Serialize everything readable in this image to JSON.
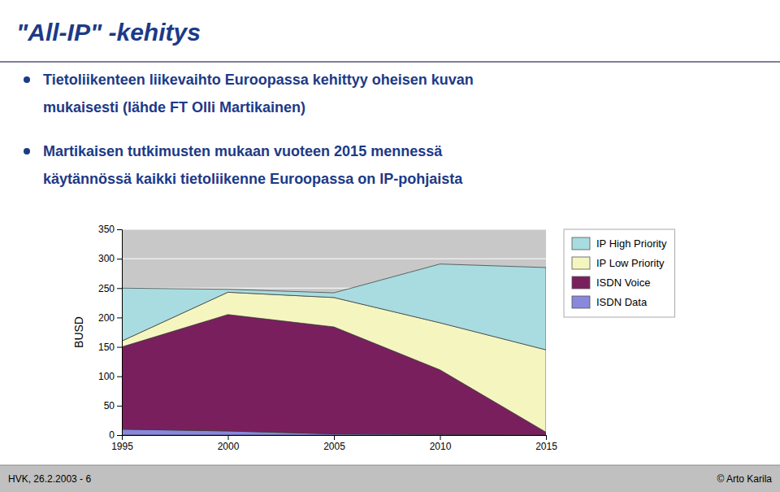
{
  "chart_data": {
    "type": "area",
    "title": "\"All-IP\" -kehitys",
    "annotations": [
      "Tietoliikenteen liikevaihto Euroopassa kehittyy oheisen kuvan",
      "mukaisesti (lähde FT Olli Martikainen)",
      "Martikaisen tutkimusten mukaan vuoteen 2015 mennessä",
      "käytännössä kaikki tietoliikenne Euroopassa on IP-pohjaista",
      "HVK, 26.2.2003 - 6",
      "© Arto Karila"
    ],
    "x": [
      1995,
      2000,
      2005,
      2010,
      2015
    ],
    "series": [
      {
        "name": "ISDN Data",
        "color": "#8888dd",
        "values": [
          10,
          7,
          2,
          1,
          0
        ]
      },
      {
        "name": "ISDN Voice",
        "color": "#7a1f5e",
        "values": [
          140,
          198,
          182,
          110,
          5
        ]
      },
      {
        "name": "IP Low Priority",
        "color": "#f5f5c0",
        "values": [
          10,
          38,
          50,
          80,
          140
        ]
      },
      {
        "name": "IP High Priority",
        "color": "#a8dce0",
        "values": [
          90,
          5,
          8,
          100,
          140
        ]
      }
    ],
    "ylabel": "BUSD",
    "xlim": [
      1995,
      2015
    ],
    "xticks": [
      1995,
      2000,
      2005,
      2010,
      2015
    ],
    "ylim": [
      0,
      350
    ],
    "yticks": [
      0,
      50,
      100,
      150,
      200,
      250,
      300,
      350
    ],
    "stacked": true,
    "grid": true,
    "legend": "right"
  }
}
